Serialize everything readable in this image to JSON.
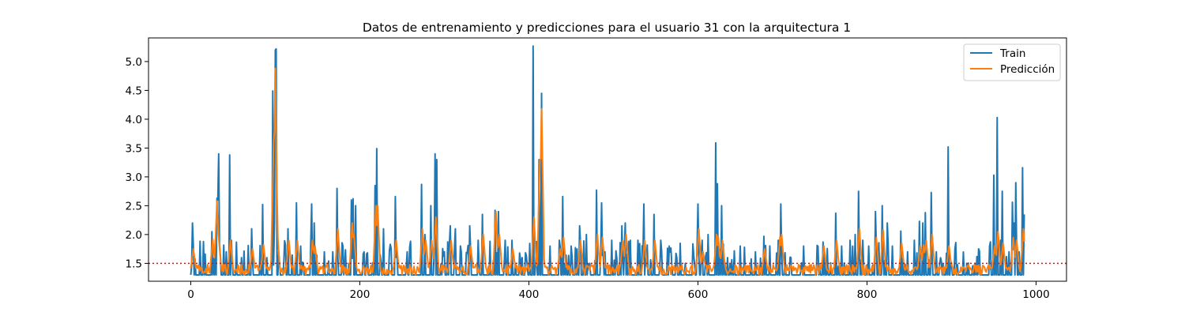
{
  "chart_data": {
    "type": "line",
    "title": "Datos de entrenamiento y predicciones para el usuario 31 con la arquitectura 1",
    "xlabel": "",
    "ylabel": "",
    "xlim": [
      -50,
      1036
    ],
    "ylim": [
      1.19,
      5.41
    ],
    "xticks": [
      0,
      200,
      400,
      600,
      800,
      1000
    ],
    "xtick_labels": [
      "0",
      "200",
      "400",
      "600",
      "800",
      "1000"
    ],
    "yticks": [
      1.5,
      2.0,
      2.5,
      3.0,
      3.5,
      4.0,
      4.5,
      5.0
    ],
    "ytick_labels": [
      "1.5",
      "2.0",
      "2.5",
      "3.0",
      "3.5",
      "4.0",
      "4.5",
      "5.0"
    ],
    "grid": false,
    "legend_position": "top-right",
    "hline": {
      "y": 1.5,
      "color": "#ff0000",
      "style": "dotted"
    },
    "series": [
      {
        "name": "Train",
        "color": "#1f77b4",
        "baseline": 1.3,
        "n_points": 987,
        "peaks": [
          [
            2,
            2.2
          ],
          [
            5,
            1.5
          ],
          [
            25,
            2.05
          ],
          [
            29,
            1.9
          ],
          [
            31,
            2.63
          ],
          [
            32,
            2.6
          ],
          [
            33,
            3.4
          ],
          [
            42,
            1.7
          ],
          [
            46,
            3.38
          ],
          [
            48,
            1.9
          ],
          [
            60,
            1.6
          ],
          [
            72,
            2.1
          ],
          [
            85,
            2.52
          ],
          [
            90,
            1.6
          ],
          [
            97,
            4.49
          ],
          [
            99,
            2.2
          ],
          [
            100,
            5.2
          ],
          [
            101,
            5.22
          ],
          [
            104,
            1.7
          ],
          [
            115,
            2.1
          ],
          [
            125,
            2.55
          ],
          [
            130,
            1.8
          ],
          [
            143,
            2.53
          ],
          [
            146,
            2.2
          ],
          [
            158,
            1.7
          ],
          [
            168,
            1.7
          ],
          [
            173,
            2.8
          ],
          [
            180,
            1.8
          ],
          [
            190,
            2.6
          ],
          [
            192,
            2.62
          ],
          [
            195,
            2.5
          ],
          [
            205,
            1.7
          ],
          [
            218,
            2.85
          ],
          [
            220,
            3.49
          ],
          [
            228,
            2.1
          ],
          [
            237,
            1.6
          ],
          [
            242,
            2.66
          ],
          [
            256,
            1.7
          ],
          [
            273,
            2.87
          ],
          [
            277,
            2.0
          ],
          [
            284,
            2.5
          ],
          [
            289,
            3.4
          ],
          [
            291,
            3.3
          ],
          [
            300,
            1.7
          ],
          [
            307,
            2.15
          ],
          [
            313,
            2.1
          ],
          [
            320,
            1.7
          ],
          [
            330,
            2.15
          ],
          [
            340,
            1.9
          ],
          [
            345,
            2.35
          ],
          [
            360,
            2.42
          ],
          [
            364,
            2.4
          ],
          [
            372,
            1.9
          ],
          [
            380,
            1.9
          ],
          [
            392,
            1.6
          ],
          [
            405,
            5.27
          ],
          [
            412,
            3.3
          ],
          [
            415,
            4.45
          ],
          [
            425,
            1.8
          ],
          [
            436,
            1.9
          ],
          [
            440,
            2.66
          ],
          [
            450,
            1.8
          ],
          [
            460,
            2.15
          ],
          [
            468,
            2.0
          ],
          [
            480,
            2.77
          ],
          [
            486,
            2.55
          ],
          [
            490,
            1.7
          ],
          [
            498,
            1.9
          ],
          [
            510,
            2.15
          ],
          [
            514,
            2.2
          ],
          [
            520,
            1.9
          ],
          [
            529,
            1.9
          ],
          [
            536,
            2.53
          ],
          [
            548,
            2.35
          ],
          [
            556,
            1.9
          ],
          [
            566,
            1.8
          ],
          [
            575,
            1.6
          ],
          [
            585,
            1.5
          ],
          [
            600,
            2.53
          ],
          [
            605,
            1.9
          ],
          [
            612,
            2.0
          ],
          [
            621,
            3.59
          ],
          [
            623,
            2.88
          ],
          [
            628,
            2.5
          ],
          [
            635,
            1.6
          ],
          [
            650,
            1.8
          ],
          [
            668,
            1.7
          ],
          [
            678,
            1.97
          ],
          [
            695,
            1.9
          ],
          [
            698,
            2.53
          ],
          [
            710,
            1.6
          ],
          [
            725,
            1.8
          ],
          [
            748,
            1.87
          ],
          [
            763,
            2.37
          ],
          [
            770,
            1.8
          ],
          [
            780,
            1.9
          ],
          [
            786,
            2.0
          ],
          [
            790,
            2.75
          ],
          [
            795,
            1.9
          ],
          [
            802,
            1.8
          ],
          [
            810,
            2.4
          ],
          [
            818,
            2.5
          ],
          [
            824,
            2.2
          ],
          [
            830,
            1.8
          ],
          [
            840,
            2.06
          ],
          [
            848,
            1.7
          ],
          [
            856,
            1.9
          ],
          [
            862,
            2.23
          ],
          [
            866,
            2.2
          ],
          [
            869,
            2.38
          ],
          [
            876,
            2.73
          ],
          [
            882,
            1.7
          ],
          [
            896,
            3.52
          ],
          [
            905,
            1.6
          ],
          [
            918,
            1.5
          ],
          [
            930,
            1.6
          ],
          [
            945,
            1.8
          ],
          [
            950,
            3.03
          ],
          [
            954,
            4.03
          ],
          [
            958,
            1.9
          ],
          [
            960,
            2.75
          ],
          [
            968,
            1.7
          ],
          [
            972,
            2.56
          ],
          [
            974,
            2.2
          ],
          [
            976,
            2.9
          ],
          [
            980,
            1.7
          ],
          [
            984,
            3.16
          ],
          [
            986,
            2.35
          ]
        ]
      },
      {
        "name": "Predicción",
        "color": "#ff7f0e",
        "baseline": 1.4,
        "n_points": 987,
        "peaks": [
          [
            3,
            1.75
          ],
          [
            26,
            1.92
          ],
          [
            31,
            2.58
          ],
          [
            33,
            1.95
          ],
          [
            47,
            1.9
          ],
          [
            73,
            1.75
          ],
          [
            86,
            1.82
          ],
          [
            98,
            3.6
          ],
          [
            100,
            4.88
          ],
          [
            102,
            2.2
          ],
          [
            116,
            1.9
          ],
          [
            126,
            1.9
          ],
          [
            144,
            1.9
          ],
          [
            147,
            1.8
          ],
          [
            174,
            2.1
          ],
          [
            191,
            2.2
          ],
          [
            193,
            2.0
          ],
          [
            219,
            2.5
          ],
          [
            221,
            2.5
          ],
          [
            243,
            1.9
          ],
          [
            274,
            2.1
          ],
          [
            278,
            1.9
          ],
          [
            285,
            1.9
          ],
          [
            290,
            2.3
          ],
          [
            308,
            1.9
          ],
          [
            331,
            1.8
          ],
          [
            346,
            2.0
          ],
          [
            361,
            2.4
          ],
          [
            365,
            2.0
          ],
          [
            381,
            1.75
          ],
          [
            406,
            2.3
          ],
          [
            413,
            3.3
          ],
          [
            415,
            4.18
          ],
          [
            437,
            1.75
          ],
          [
            441,
            1.95
          ],
          [
            461,
            1.9
          ],
          [
            481,
            2.0
          ],
          [
            487,
            1.95
          ],
          [
            511,
            1.9
          ],
          [
            515,
            2.0
          ],
          [
            537,
            1.9
          ],
          [
            549,
            1.9
          ],
          [
            601,
            2.1
          ],
          [
            606,
            1.7
          ],
          [
            622,
            2.0
          ],
          [
            624,
            1.97
          ],
          [
            629,
            1.9
          ],
          [
            679,
            1.75
          ],
          [
            697,
            1.95
          ],
          [
            699,
            2.0
          ],
          [
            749,
            1.8
          ],
          [
            764,
            1.9
          ],
          [
            791,
            2.1
          ],
          [
            811,
            1.95
          ],
          [
            819,
            2.08
          ],
          [
            841,
            1.85
          ],
          [
            863,
            1.8
          ],
          [
            867,
            1.82
          ],
          [
            870,
            1.9
          ],
          [
            877,
            2.0
          ],
          [
            897,
            1.8
          ],
          [
            951,
            1.8
          ],
          [
            955,
            2.05
          ],
          [
            961,
            1.85
          ],
          [
            973,
            1.95
          ],
          [
            977,
            1.9
          ],
          [
            985,
            2.1
          ],
          [
            987,
            1.6
          ]
        ]
      }
    ]
  }
}
